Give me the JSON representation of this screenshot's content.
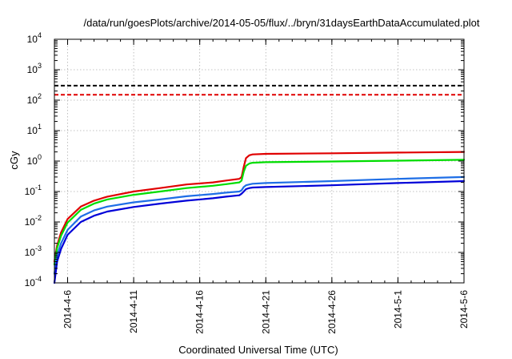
{
  "chart_data": {
    "type": "line",
    "title": "/data/run/goesPlots/archive/2014-05-05/flux/../bryn/31daysEarthDataAccumulated.plot",
    "xlabel": "Coordinated Universal Time (UTC)",
    "ylabel": "cGy",
    "y_scale": "log",
    "ylim": [
      0.0001,
      10000
    ],
    "xlim": [
      "2014-04-05",
      "2014-05-06"
    ],
    "x_ticks": [
      "2014-4-6",
      "2014-4-11",
      "2014-4-16",
      "2014-4-21",
      "2014-4-26",
      "2014-5-1",
      "2014-5-6"
    ],
    "y_ticks": [
      {
        "base": "10",
        "exp": "-4",
        "value": 0.0001
      },
      {
        "base": "10",
        "exp": "-3",
        "value": 0.001
      },
      {
        "base": "10",
        "exp": "-2",
        "value": 0.01
      },
      {
        "base": "10",
        "exp": "-1",
        "value": 0.1
      },
      {
        "base": "10",
        "exp": "0",
        "value": 1
      },
      {
        "base": "10",
        "exp": "1",
        "value": 10
      },
      {
        "base": "10",
        "exp": "2",
        "value": 100
      },
      {
        "base": "10",
        "exp": "3",
        "value": 1000
      },
      {
        "base": "10",
        "exp": "4",
        "value": 10000
      }
    ],
    "grid": true,
    "reference_lines": [
      {
        "value": 300,
        "color": "#000000",
        "style": "dashed"
      },
      {
        "value": 150,
        "color": "#e00000",
        "style": "dashed"
      }
    ],
    "series": [
      {
        "color": "#e00000",
        "x": [
          "2014-04-05",
          "2014-04-05T05",
          "2014-04-05T12",
          "2014-04-06",
          "2014-04-07",
          "2014-04-08",
          "2014-04-09",
          "2014-04-11",
          "2014-04-13",
          "2014-04-15",
          "2014-04-17",
          "2014-04-18",
          "2014-04-19",
          "2014-04-19T04",
          "2014-04-19T08",
          "2014-04-19T12",
          "2014-04-19T18",
          "2014-04-20",
          "2014-04-21",
          "2014-04-26",
          "2014-05-01",
          "2014-05-06"
        ],
        "values": [
          0.0005,
          0.0017,
          0.0045,
          0.0125,
          0.032,
          0.05,
          0.068,
          0.1,
          0.13,
          0.17,
          0.2,
          0.23,
          0.26,
          0.3,
          0.65,
          1.25,
          1.55,
          1.65,
          1.72,
          1.8,
          1.9,
          2.0
        ]
      },
      {
        "color": "#00dd00",
        "x": [
          "2014-04-05",
          "2014-04-05T05",
          "2014-04-05T12",
          "2014-04-06",
          "2014-04-07",
          "2014-04-08",
          "2014-04-09",
          "2014-04-11",
          "2014-04-13",
          "2014-04-15",
          "2014-04-17",
          "2014-04-18",
          "2014-04-19",
          "2014-04-19T04",
          "2014-04-19T08",
          "2014-04-19T12",
          "2014-04-19T18",
          "2014-04-20",
          "2014-04-21",
          "2014-04-26",
          "2014-05-01",
          "2014-05-06"
        ],
        "values": [
          0.0004,
          0.0014,
          0.0035,
          0.0095,
          0.025,
          0.04,
          0.055,
          0.078,
          0.1,
          0.13,
          0.155,
          0.175,
          0.2,
          0.23,
          0.45,
          0.7,
          0.83,
          0.88,
          0.92,
          0.97,
          1.03,
          1.1
        ]
      },
      {
        "color": "#1e6ee6",
        "x": [
          "2014-04-05",
          "2014-04-05T05",
          "2014-04-05T12",
          "2014-04-06",
          "2014-04-07",
          "2014-04-08",
          "2014-04-09",
          "2014-04-11",
          "2014-04-13",
          "2014-04-15",
          "2014-04-17",
          "2014-04-18",
          "2014-04-19",
          "2014-04-19T04",
          "2014-04-19T08",
          "2014-04-19T12",
          "2014-04-19T18",
          "2014-04-20",
          "2014-04-21",
          "2014-04-26",
          "2014-05-01",
          "2014-05-06"
        ],
        "values": [
          0.0002,
          0.0008,
          0.002,
          0.0055,
          0.015,
          0.024,
          0.032,
          0.044,
          0.055,
          0.07,
          0.083,
          0.092,
          0.1,
          0.11,
          0.14,
          0.16,
          0.17,
          0.18,
          0.19,
          0.22,
          0.26,
          0.3
        ]
      },
      {
        "color": "#0000d8",
        "x": [
          "2014-04-05",
          "2014-04-05T05",
          "2014-04-05T12",
          "2014-04-06",
          "2014-04-07",
          "2014-04-08",
          "2014-04-09",
          "2014-04-11",
          "2014-04-13",
          "2014-04-15",
          "2014-04-17",
          "2014-04-18",
          "2014-04-19",
          "2014-04-19T04",
          "2014-04-19T08",
          "2014-04-19T12",
          "2014-04-19T18",
          "2014-04-20",
          "2014-04-21",
          "2014-04-26",
          "2014-05-01",
          "2014-05-06"
        ],
        "values": [
          0.0001,
          0.0005,
          0.0013,
          0.0038,
          0.01,
          0.016,
          0.022,
          0.031,
          0.04,
          0.05,
          0.06,
          0.068,
          0.075,
          0.085,
          0.1,
          0.12,
          0.13,
          0.135,
          0.14,
          0.16,
          0.19,
          0.22
        ]
      }
    ]
  }
}
